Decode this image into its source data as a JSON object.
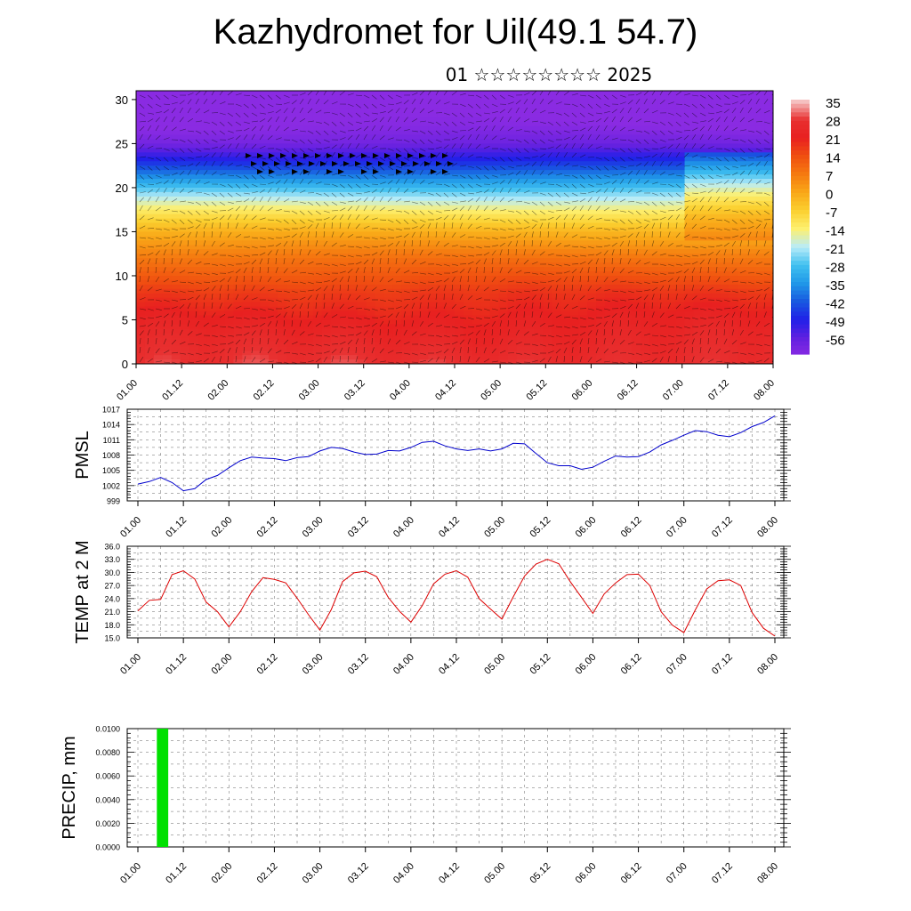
{
  "title": "Kazhydromet for Uil(49.1 54.7)",
  "subtitle": "01 ☆☆☆☆☆☆☆☆ 2025",
  "chart_data": [
    {
      "type": "heatmap",
      "name": "vertical cross-section",
      "x_ticks": [
        "01.00",
        "01.12",
        "02.00",
        "02.12",
        "03.00",
        "03.12",
        "04.00",
        "04.12",
        "05.00",
        "05.12",
        "06.00",
        "06.12",
        "07.00",
        "07.12",
        "08.00"
      ],
      "y_ticks": [
        "0",
        "5",
        "10",
        "15",
        "20",
        "25",
        "30"
      ],
      "ylim": [
        0,
        31
      ],
      "colorbar_labels": [
        "35",
        "28",
        "21",
        "14",
        "7",
        "0",
        "-7",
        "-14",
        "-21",
        "-28",
        "-35",
        "-42",
        "-49",
        "-56"
      ],
      "colorbar_colors": [
        "#f5c0c0",
        "#e83030",
        "#e82020",
        "#f05010",
        "#f57a10",
        "#f9a818",
        "#fbd030",
        "#fdf070",
        "#b8ecf8",
        "#40c0f0",
        "#2098e8",
        "#1858e0",
        "#2020e8",
        "#6020e0",
        "#8a2be2"
      ],
      "value_scale": [
        -56,
        35
      ],
      "rows_note": "",
      "profile_height": [
        0,
        4,
        8,
        12,
        15,
        17,
        19,
        21,
        23,
        25,
        27,
        31
      ],
      "profile_temp": [
        28,
        24,
        19,
        10,
        1,
        -8,
        -18,
        -30,
        -42,
        -52,
        -56,
        -58
      ]
    },
    {
      "type": "line",
      "ylabel": "PMSL",
      "color": "#0000cc",
      "y_ticks": [
        "999",
        "1002",
        "1005",
        "1008",
        "1011",
        "1014",
        "1017"
      ],
      "ylim": [
        999,
        1017
      ],
      "x_ticks": [
        "01.00",
        "01.12",
        "02.00",
        "02.12",
        "03.00",
        "03.12",
        "04.00",
        "04.12",
        "05.00",
        "05.12",
        "06.00",
        "06.12",
        "07.00",
        "07.12",
        "08.00"
      ],
      "x_hours": [
        0,
        3,
        6,
        9,
        12,
        15,
        18,
        21,
        24,
        27,
        30,
        33,
        36,
        39,
        42,
        45,
        48,
        51,
        54,
        57,
        60,
        63,
        66,
        69,
        72,
        75,
        78,
        81,
        84,
        87,
        90,
        93,
        96,
        99,
        102,
        105,
        108,
        111,
        114,
        117,
        120,
        123,
        126,
        129,
        132,
        135,
        138,
        141,
        144,
        147,
        150,
        153,
        156,
        159,
        162,
        165,
        168
      ],
      "values": [
        1002.3,
        1002.8,
        1003.6,
        1002.6,
        1001.0,
        1001.4,
        1003.2,
        1004.0,
        1005.5,
        1006.9,
        1007.6,
        1007.4,
        1007.3,
        1006.9,
        1007.5,
        1007.7,
        1008.8,
        1009.5,
        1009.3,
        1008.6,
        1008.1,
        1008.2,
        1008.9,
        1008.8,
        1009.5,
        1010.5,
        1010.7,
        1009.8,
        1009.2,
        1008.9,
        1009.2,
        1008.8,
        1009.2,
        1010.3,
        1010.2,
        1008.3,
        1006.5,
        1005.9,
        1005.9,
        1005.2,
        1005.6,
        1006.8,
        1007.8,
        1007.6,
        1007.7,
        1008.6,
        1010.0,
        1010.9,
        1011.9,
        1012.8,
        1012.6,
        1011.9,
        1011.6,
        1012.4,
        1013.6,
        1014.4,
        1015.7
      ]
    },
    {
      "type": "line",
      "ylabel": "TEMP at 2 M",
      "color": "#dd0000",
      "y_ticks": [
        "15.0",
        "18.0",
        "21.0",
        "24.0",
        "27.0",
        "30.0",
        "33.0",
        "36.0"
      ],
      "ylim": [
        15,
        36
      ],
      "x_ticks": [
        "01.00",
        "01.12",
        "02.00",
        "02.12",
        "03.00",
        "03.12",
        "04.00",
        "04.12",
        "05.00",
        "05.12",
        "06.00",
        "06.12",
        "07.00",
        "07.12",
        "08.00"
      ],
      "x_hours": [
        0,
        3,
        6,
        9,
        12,
        15,
        18,
        21,
        24,
        27,
        30,
        33,
        36,
        39,
        42,
        45,
        48,
        51,
        54,
        57,
        60,
        63,
        66,
        69,
        72,
        75,
        78,
        81,
        84,
        87,
        90,
        93,
        96,
        99,
        102,
        105,
        108,
        111,
        114,
        117,
        120,
        123,
        126,
        129,
        132,
        135,
        138,
        141,
        144,
        147,
        150,
        153,
        156,
        159,
        162,
        165,
        168
      ],
      "values": [
        21.2,
        23.6,
        23.8,
        29.5,
        30.4,
        28.5,
        23.2,
        21.0,
        17.5,
        21.0,
        25.6,
        28.8,
        28.4,
        27.6,
        24.1,
        20.3,
        16.8,
        21.5,
        27.9,
        29.9,
        30.3,
        29.0,
        24.3,
        21.1,
        18.6,
        22.4,
        27.4,
        29.6,
        30.4,
        28.9,
        24.0,
        21.6,
        19.3,
        24.4,
        29.2,
        31.9,
        33.0,
        32.0,
        27.9,
        24.3,
        20.6,
        25.1,
        27.6,
        29.5,
        29.6,
        27.0,
        21.0,
        17.9,
        16.2,
        21.4,
        26.2,
        28.1,
        28.3,
        27.0,
        20.8,
        17.2,
        15.4
      ]
    },
    {
      "type": "bar",
      "ylabel": "PRECIP, mm",
      "color": "#00e000",
      "y_ticks": [
        "0.0000",
        "0.0020",
        "0.0040",
        "0.0060",
        "0.0080",
        "0.0100"
      ],
      "ylim": [
        0,
        0.01
      ],
      "x_ticks": [
        "01.00",
        "01.12",
        "02.00",
        "02.12",
        "03.00",
        "03.12",
        "04.00",
        "04.12",
        "05.00",
        "05.12",
        "06.00",
        "06.12",
        "07.00",
        "07.12",
        "08.00"
      ],
      "bars": [
        {
          "hour_start": 5,
          "hour_end": 8,
          "value": 0.01
        }
      ]
    }
  ]
}
